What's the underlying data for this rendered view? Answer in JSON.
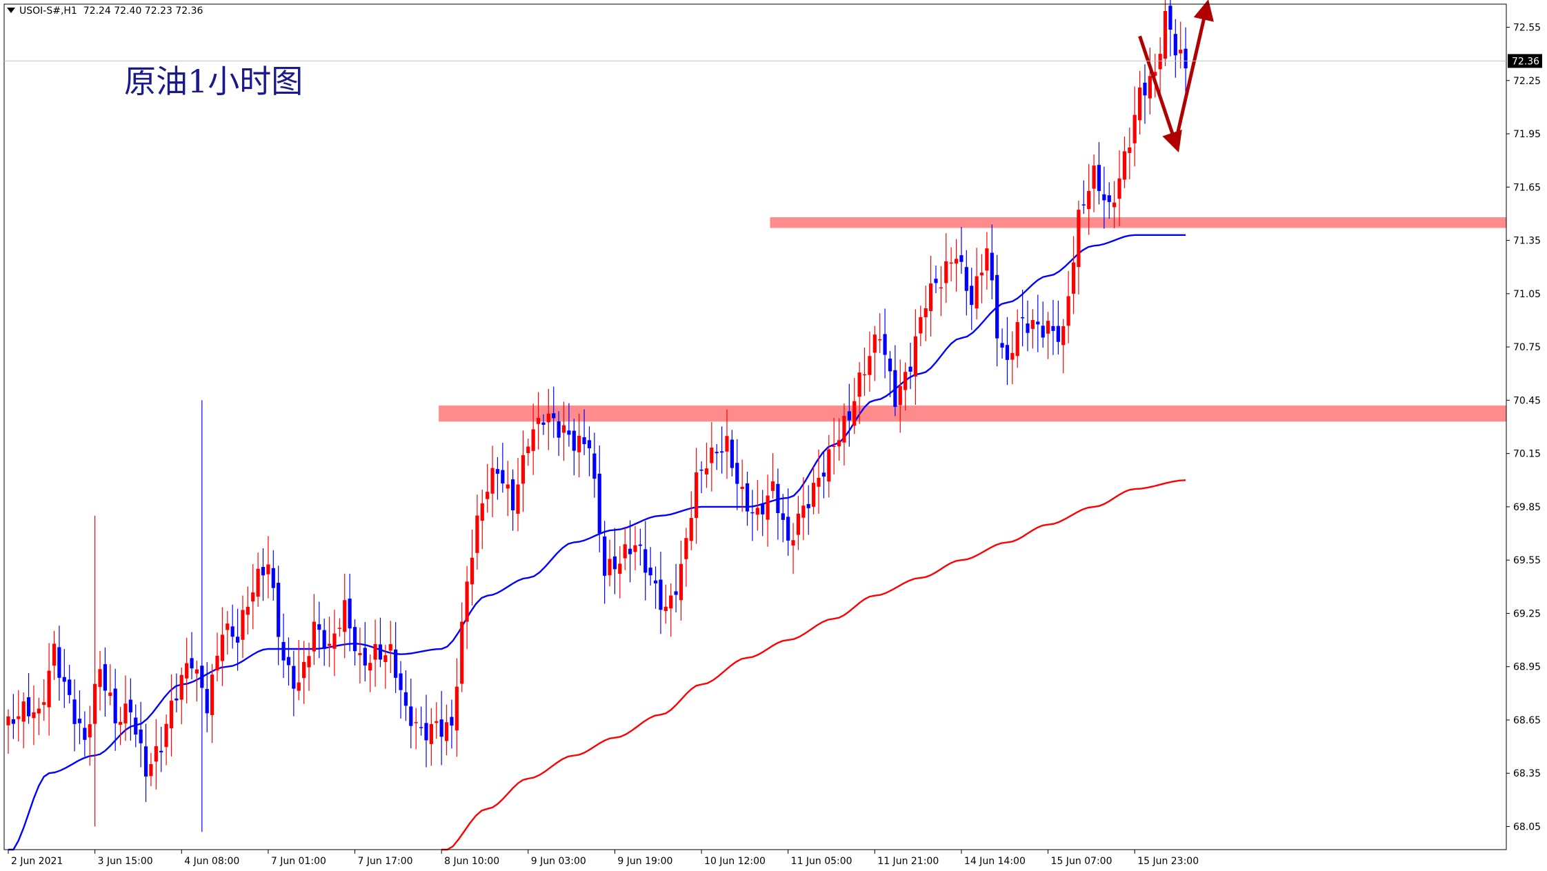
{
  "symbol_info": {
    "symbol": "USOI-S#,H1",
    "ohlc": "72.24 72.40 72.23 72.36"
  },
  "annotation_title": "原油1小时图",
  "current_price_label": "72.36",
  "colors": {
    "bull_candle": "#ff0000",
    "bear_candle": "#0000ff",
    "ma_fast": "#0000ff",
    "ma_slow": "#ff0000",
    "zone": "#ff7f7f",
    "arrow": "#b00000",
    "frame": "#000000",
    "price_line": "#c0c0c0"
  },
  "chart_data": {
    "type": "candlestick",
    "title": "原油1小时图",
    "y_axis": {
      "position": "right",
      "range": [
        67.92,
        72.68
      ],
      "tick_labels": [
        "72.55",
        "72.25",
        "71.95",
        "71.65",
        "71.35",
        "71.05",
        "70.75",
        "70.45",
        "70.15",
        "69.85",
        "69.55",
        "69.25",
        "68.95",
        "68.65",
        "68.35",
        "68.05"
      ]
    },
    "x_axis": {
      "tick_labels": [
        "2 Jun 2021",
        "3 Jun 15:00",
        "4 Jun 08:00",
        "7 Jun 01:00",
        "7 Jun 17:00",
        "8 Jun 10:00",
        "9 Jun 03:00",
        "9 Jun 19:00",
        "10 Jun 12:00",
        "11 Jun 05:00",
        "11 Jun 21:00",
        "14 Jun 14:00",
        "15 Jun 07:00",
        "15 Jun 23:00"
      ],
      "label_bar_index": [
        0,
        17,
        34,
        51,
        68,
        85,
        102,
        119,
        136,
        153,
        170,
        187,
        204,
        221
      ]
    },
    "bar_count": 232,
    "ohlc_keyframes": [
      [
        0,
        68.62
      ],
      [
        6,
        68.62
      ],
      [
        9,
        69.1
      ],
      [
        12,
        68.85
      ],
      [
        15,
        68.52
      ],
      [
        18,
        68.85
      ],
      [
        21,
        68.6
      ],
      [
        24,
        68.78
      ],
      [
        27,
        68.45
      ],
      [
        30,
        68.5
      ],
      [
        33,
        68.72
      ],
      [
        36,
        68.95
      ],
      [
        39,
        68.8
      ],
      [
        42,
        69.25
      ],
      [
        45,
        69.1
      ],
      [
        48,
        69.3
      ],
      [
        51,
        69.5
      ],
      [
        54,
        69.05
      ],
      [
        57,
        68.92
      ],
      [
        60,
        69.15
      ],
      [
        63,
        68.95
      ],
      [
        66,
        69.25
      ],
      [
        69,
        69.05
      ],
      [
        72,
        69.1
      ],
      [
        75,
        69.0
      ],
      [
        78,
        68.6
      ],
      [
        81,
        68.55
      ],
      [
        84,
        68.7
      ],
      [
        87,
        68.68
      ],
      [
        90,
        69.4
      ],
      [
        93,
        69.8
      ],
      [
        96,
        70.05
      ],
      [
        99,
        69.95
      ],
      [
        102,
        70.3
      ],
      [
        105,
        70.32
      ],
      [
        108,
        70.2
      ],
      [
        111,
        70.2
      ],
      [
        114,
        70.3
      ],
      [
        117,
        69.55
      ],
      [
        120,
        69.5
      ],
      [
        123,
        69.55
      ],
      [
        126,
        69.45
      ],
      [
        129,
        69.35
      ],
      [
        132,
        69.55
      ],
      [
        135,
        69.95
      ],
      [
        138,
        70.05
      ],
      [
        141,
        70.2
      ],
      [
        144,
        70.0
      ],
      [
        147,
        69.85
      ],
      [
        150,
        69.9
      ],
      [
        153,
        69.55
      ],
      [
        156,
        69.85
      ],
      [
        159,
        70.1
      ],
      [
        162,
        70.25
      ],
      [
        165,
        70.3
      ],
      [
        168,
        70.55
      ],
      [
        171,
        70.85
      ],
      [
        174,
        70.55
      ],
      [
        177,
        70.7
      ],
      [
        180,
        70.95
      ],
      [
        183,
        71.05
      ],
      [
        186,
        71.3
      ],
      [
        189,
        71.1
      ],
      [
        192,
        71.35
      ],
      [
        194,
        70.8
      ],
      [
        196,
        70.55
      ],
      [
        198,
        70.8
      ],
      [
        201,
        70.9
      ],
      [
        204,
        70.95
      ],
      [
        207,
        70.85
      ],
      [
        210,
        71.4
      ],
      [
        213,
        71.65
      ],
      [
        216,
        71.55
      ],
      [
        219,
        71.9
      ],
      [
        222,
        72.2
      ],
      [
        225,
        72.2
      ],
      [
        227,
        72.52
      ],
      [
        229,
        72.4
      ],
      [
        231,
        72.36
      ]
    ],
    "spike_bars": [
      [
        17,
        68.05,
        69.8
      ],
      [
        38,
        68.02,
        70.45
      ],
      [
        57,
        68.95,
        69.1
      ]
    ],
    "moving_averages": [
      {
        "color": "#0000ff",
        "points": [
          [
            0,
            67.9
          ],
          [
            8,
            68.35
          ],
          [
            17,
            68.45
          ],
          [
            25,
            68.62
          ],
          [
            34,
            68.85
          ],
          [
            43,
            68.95
          ],
          [
            51,
            69.05
          ],
          [
            60,
            69.05
          ],
          [
            68,
            69.08
          ],
          [
            77,
            69.02
          ],
          [
            85,
            69.05
          ],
          [
            94,
            69.35
          ],
          [
            102,
            69.45
          ],
          [
            111,
            69.65
          ],
          [
            119,
            69.72
          ],
          [
            128,
            69.8
          ],
          [
            136,
            69.85
          ],
          [
            145,
            69.85
          ],
          [
            153,
            69.9
          ],
          [
            162,
            70.2
          ],
          [
            170,
            70.45
          ],
          [
            179,
            70.6
          ],
          [
            187,
            70.8
          ],
          [
            196,
            71.0
          ],
          [
            204,
            71.15
          ],
          [
            213,
            71.32
          ],
          [
            221,
            71.38
          ],
          [
            231,
            71.38
          ]
        ]
      },
      {
        "color": "#ff0000",
        "points": [
          [
            85,
            67.9
          ],
          [
            94,
            68.15
          ],
          [
            102,
            68.32
          ],
          [
            111,
            68.45
          ],
          [
            119,
            68.55
          ],
          [
            128,
            68.68
          ],
          [
            136,
            68.85
          ],
          [
            145,
            69.0
          ],
          [
            153,
            69.1
          ],
          [
            162,
            69.22
          ],
          [
            170,
            69.35
          ],
          [
            179,
            69.45
          ],
          [
            187,
            69.55
          ],
          [
            196,
            69.65
          ],
          [
            204,
            69.75
          ],
          [
            213,
            69.85
          ],
          [
            221,
            69.95
          ],
          [
            231,
            70.0
          ]
        ]
      }
    ],
    "resistance_zones": [
      {
        "y_low": 71.42,
        "y_high": 71.48,
        "x_start_bar": 150,
        "x_end_bar": 232
      },
      {
        "y_low": 70.33,
        "y_high": 70.42,
        "x_start_bar": 85,
        "x_end_bar": 232
      }
    ],
    "arrows": [
      {
        "from": [
          222,
          72.5
        ],
        "to": [
          229,
          71.9
        ]
      },
      {
        "from": [
          229,
          71.9
        ],
        "to": [
          235,
          72.65
        ]
      }
    ],
    "grid": false,
    "legend": "none"
  }
}
